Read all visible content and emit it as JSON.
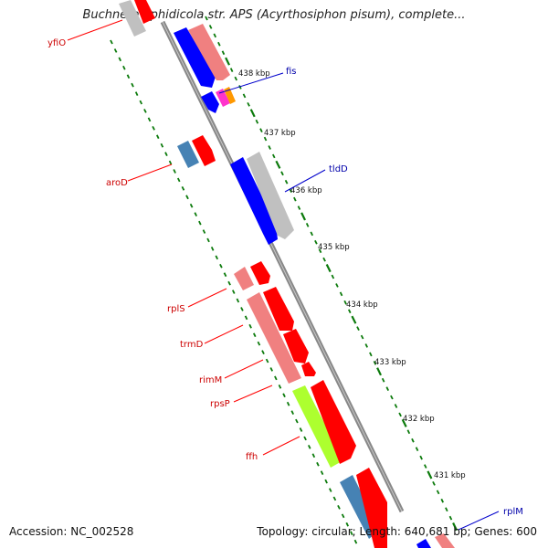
{
  "header": {
    "title": "Buchnera aphidicola str. APS (Acyrthosiphon pisum), complete..."
  },
  "footer": {
    "accession": "Accession: NC_002528",
    "summary": "Topology: circular; Length: 640,681 bp; Genes: 600"
  },
  "scale": {
    "ticks": [
      "438 kbp",
      "437 kbp",
      "436 kbp",
      "435 kbp",
      "434 kbp",
      "433 kbp",
      "432 kbp",
      "431 kbp"
    ]
  },
  "genes": {
    "yfiO": "yfiO",
    "fis": "fis",
    "aroD": "aroD",
    "tldD": "tldD",
    "rplS": "rplS",
    "trmD": "trmD",
    "rimM": "rimM",
    "rpsP": "rpsP",
    "ffh": "ffh",
    "rplM": "rplM"
  },
  "colors": {
    "forward_cds": "#ff0000",
    "reverse_cds": "#0000ff",
    "label_red": "#cc0000",
    "label_blue": "#0000aa",
    "backbone": "#888888",
    "tick": "#0b7a0b",
    "light_red": "#f08080",
    "grey": "#c0c0c0",
    "steel_blue": "#4682b4",
    "lime": "#adff2f",
    "magenta": "#ff33cc",
    "orange": "#ff9900"
  }
}
